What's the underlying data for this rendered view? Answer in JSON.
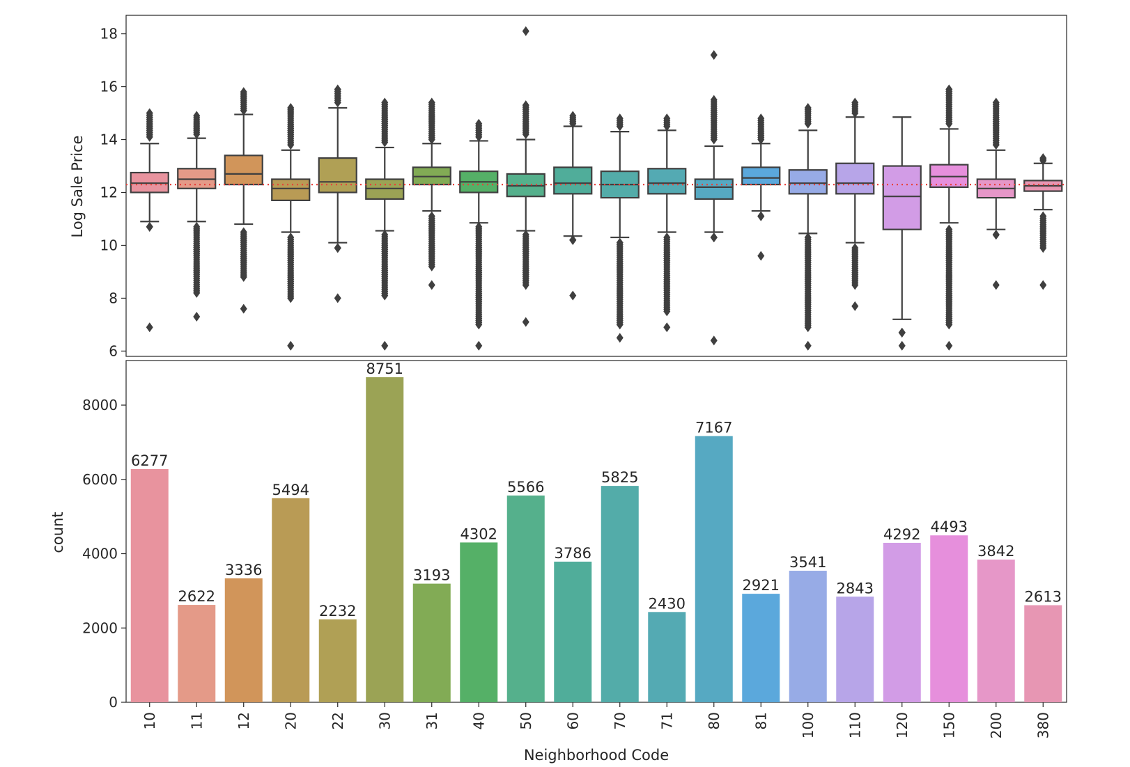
{
  "chart_data": [
    {
      "type": "box",
      "title": "",
      "xlabel": "",
      "ylabel": "Log Sale Price",
      "ylim": [
        5.8,
        18.7
      ],
      "yticks": [
        6,
        8,
        10,
        12,
        14,
        16,
        18
      ],
      "reference_line": {
        "value": 12.3,
        "style": "dotted",
        "color": "#e8413c"
      },
      "categories": [
        "10",
        "11",
        "12",
        "20",
        "22",
        "30",
        "31",
        "40",
        "50",
        "60",
        "70",
        "71",
        "80",
        "81",
        "100",
        "110",
        "120",
        "150",
        "200",
        "380"
      ],
      "colors": [
        "#e8939e",
        "#e49a88",
        "#d1955a",
        "#b99b55",
        "#b0a055",
        "#9ba355",
        "#82ab55",
        "#55b067",
        "#55b08c",
        "#50ad9a",
        "#53aca9",
        "#54aab3",
        "#56a9c2",
        "#5ba8dc",
        "#97abe6",
        "#b7a5e8",
        "#d29ce6",
        "#e68fdc",
        "#e697c8",
        "#e796b3"
      ],
      "boxes": [
        {
          "q1": 12.0,
          "median": 12.35,
          "q3": 12.75,
          "whisker_low": 10.9,
          "whisker_high": 13.85,
          "outliers_low": [
            10.7,
            6.9
          ],
          "outliers_high": [
            14.1,
            15.0
          ]
        },
        {
          "q1": 12.15,
          "median": 12.5,
          "q3": 12.9,
          "whisker_low": 10.9,
          "whisker_high": 14.05,
          "outliers_low": [
            10.7,
            9.3,
            8.2,
            7.3
          ],
          "outliers_high": [
            14.2,
            14.9
          ]
        },
        {
          "q1": 12.3,
          "median": 12.7,
          "q3": 13.4,
          "whisker_low": 10.8,
          "whisker_high": 14.95,
          "outliers_low": [
            10.5,
            8.8,
            7.6
          ],
          "outliers_high": [
            15.1,
            15.8
          ]
        },
        {
          "q1": 11.7,
          "median": 12.15,
          "q3": 12.5,
          "whisker_low": 10.5,
          "whisker_high": 13.6,
          "outliers_low": [
            10.3,
            8.0,
            6.2
          ],
          "outliers_high": [
            13.8,
            15.2
          ]
        },
        {
          "q1": 12.0,
          "median": 12.4,
          "q3": 13.3,
          "whisker_low": 10.1,
          "whisker_high": 15.2,
          "outliers_low": [
            9.9,
            8.0
          ],
          "outliers_high": [
            15.4,
            15.9
          ]
        },
        {
          "q1": 11.75,
          "median": 12.15,
          "q3": 12.5,
          "whisker_low": 10.55,
          "whisker_high": 13.7,
          "outliers_low": [
            10.4,
            8.1,
            6.2
          ],
          "outliers_high": [
            13.9,
            15.4
          ]
        },
        {
          "q1": 12.3,
          "median": 12.6,
          "q3": 12.95,
          "whisker_low": 11.3,
          "whisker_high": 13.85,
          "outliers_low": [
            11.1,
            9.2,
            8.5
          ],
          "outliers_high": [
            14.0,
            15.4
          ]
        },
        {
          "q1": 12.0,
          "median": 12.4,
          "q3": 12.8,
          "whisker_low": 10.85,
          "whisker_high": 13.95,
          "outliers_low": [
            10.7,
            7.0,
            6.2
          ],
          "outliers_high": [
            14.1,
            14.6
          ]
        },
        {
          "q1": 11.85,
          "median": 12.25,
          "q3": 12.7,
          "whisker_low": 10.55,
          "whisker_high": 14.0,
          "outliers_low": [
            10.4,
            9.2,
            8.5,
            7.1
          ],
          "outliers_high": [
            14.2,
            15.3,
            18.1
          ]
        },
        {
          "q1": 11.95,
          "median": 12.35,
          "q3": 12.95,
          "whisker_low": 10.35,
          "whisker_high": 14.5,
          "outliers_low": [
            10.2,
            8.1
          ],
          "outliers_high": [
            14.6,
            14.9
          ]
        },
        {
          "q1": 11.8,
          "median": 12.3,
          "q3": 12.8,
          "whisker_low": 10.3,
          "whisker_high": 14.3,
          "outliers_low": [
            10.1,
            7.0,
            6.5
          ],
          "outliers_high": [
            14.5,
            14.8
          ]
        },
        {
          "q1": 11.95,
          "median": 12.35,
          "q3": 12.9,
          "whisker_low": 10.5,
          "whisker_high": 14.35,
          "outliers_low": [
            10.3,
            7.5,
            6.9
          ],
          "outliers_high": [
            14.5,
            14.8
          ]
        },
        {
          "q1": 11.75,
          "median": 12.2,
          "q3": 12.5,
          "whisker_low": 10.5,
          "whisker_high": 13.75,
          "outliers_low": [
            10.3,
            6.4
          ],
          "outliers_high": [
            14.0,
            15.5,
            17.2
          ]
        },
        {
          "q1": 12.3,
          "median": 12.55,
          "q3": 12.95,
          "whisker_low": 11.3,
          "whisker_high": 13.85,
          "outliers_low": [
            11.1,
            9.6
          ],
          "outliers_high": [
            14.0,
            14.8
          ]
        },
        {
          "q1": 11.95,
          "median": 12.35,
          "q3": 12.85,
          "whisker_low": 10.45,
          "whisker_high": 14.35,
          "outliers_low": [
            10.3,
            6.9,
            6.2
          ],
          "outliers_high": [
            14.6,
            15.2
          ]
        },
        {
          "q1": 11.95,
          "median": 12.35,
          "q3": 13.1,
          "whisker_low": 10.1,
          "whisker_high": 14.85,
          "outliers_low": [
            9.9,
            8.5,
            7.7
          ],
          "outliers_high": [
            15.0,
            15.4
          ]
        },
        {
          "q1": 10.6,
          "median": 11.85,
          "q3": 13.0,
          "whisker_low": 7.2,
          "whisker_high": 14.85,
          "outliers_low": [
            6.7,
            6.2
          ],
          "outliers_high": []
        },
        {
          "q1": 12.2,
          "median": 12.6,
          "q3": 13.05,
          "whisker_low": 10.85,
          "whisker_high": 14.4,
          "outliers_low": [
            10.6,
            8.4,
            7.0,
            6.2
          ],
          "outliers_high": [
            14.6,
            15.9
          ]
        },
        {
          "q1": 11.8,
          "median": 12.15,
          "q3": 12.5,
          "whisker_low": 10.6,
          "whisker_high": 13.6,
          "outliers_low": [
            10.4,
            8.5
          ],
          "outliers_high": [
            13.8,
            15.4
          ]
        },
        {
          "q1": 12.05,
          "median": 12.25,
          "q3": 12.45,
          "whisker_low": 11.35,
          "whisker_high": 13.1,
          "outliers_low": [
            11.1,
            9.9,
            8.5
          ],
          "outliers_high": [
            13.2,
            13.3
          ]
        }
      ]
    },
    {
      "type": "bar",
      "title": "",
      "xlabel": "Neighborhood Code",
      "ylabel": "count",
      "ylim": [
        0,
        9200
      ],
      "yticks": [
        0,
        2000,
        4000,
        6000,
        8000
      ],
      "categories": [
        "10",
        "11",
        "12",
        "20",
        "22",
        "30",
        "31",
        "40",
        "50",
        "60",
        "70",
        "71",
        "80",
        "81",
        "100",
        "110",
        "120",
        "150",
        "200",
        "380"
      ],
      "values": [
        6277,
        2622,
        3336,
        5494,
        2232,
        8751,
        3193,
        4302,
        5566,
        3786,
        5825,
        2430,
        7167,
        2921,
        3541,
        2843,
        4292,
        4493,
        3842,
        2613
      ],
      "data_labels": [
        "6277",
        "2622",
        "3336",
        "5494",
        "2232",
        "8751",
        "3193",
        "4302",
        "5566",
        "3786",
        "5825",
        "2430",
        "7167",
        "2921",
        "3541",
        "2843",
        "4292",
        "4493",
        "3842",
        "2613"
      ],
      "colors": [
        "#e8939e",
        "#e49a88",
        "#d1955a",
        "#b99b55",
        "#b0a055",
        "#9ba355",
        "#82ab55",
        "#55b067",
        "#55b08c",
        "#50ad9a",
        "#53aca9",
        "#54aab3",
        "#56a9c2",
        "#5ba8dc",
        "#97abe6",
        "#b7a5e8",
        "#d29ce6",
        "#e68fdc",
        "#e697c8",
        "#e796b3"
      ]
    }
  ]
}
